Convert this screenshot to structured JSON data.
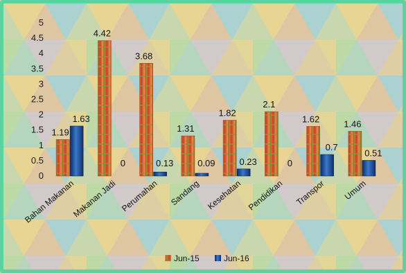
{
  "chart_data": {
    "type": "bar",
    "title": "",
    "xlabel": "",
    "ylabel": "",
    "categories": [
      "Bahan Makanan",
      "Makanan Jadi",
      "Perumahan",
      "Sandang",
      "Kesehatan",
      "Pendidikan",
      "Transpor",
      "Umum"
    ],
    "series": [
      {
        "name": "Jun-15",
        "values": [
          1.19,
          4.42,
          3.68,
          1.31,
          1.82,
          2.1,
          1.62,
          1.46
        ],
        "labels": [
          "1.19",
          "4.42",
          "3.68",
          "1.31",
          "1.82",
          "2.1",
          "1.62",
          "1.46"
        ],
        "color": "#e06a3a"
      },
      {
        "name": "Jun-16",
        "values": [
          1.63,
          0,
          0.13,
          0.09,
          0.23,
          0,
          0.7,
          0.51
        ],
        "labels": [
          "1.63",
          "0",
          "0.13",
          "0.09",
          "0.23",
          "0",
          "0.7",
          "0.51"
        ],
        "color": "#1f4e9a"
      }
    ],
    "ylim": [
      0,
      5
    ],
    "yticks": [
      "0",
      "0.5",
      "1",
      "1.5",
      "2",
      "2.5",
      "3",
      "3.5",
      "4",
      "4.5",
      "5"
    ],
    "grid": false,
    "legend_position": "bottom"
  }
}
